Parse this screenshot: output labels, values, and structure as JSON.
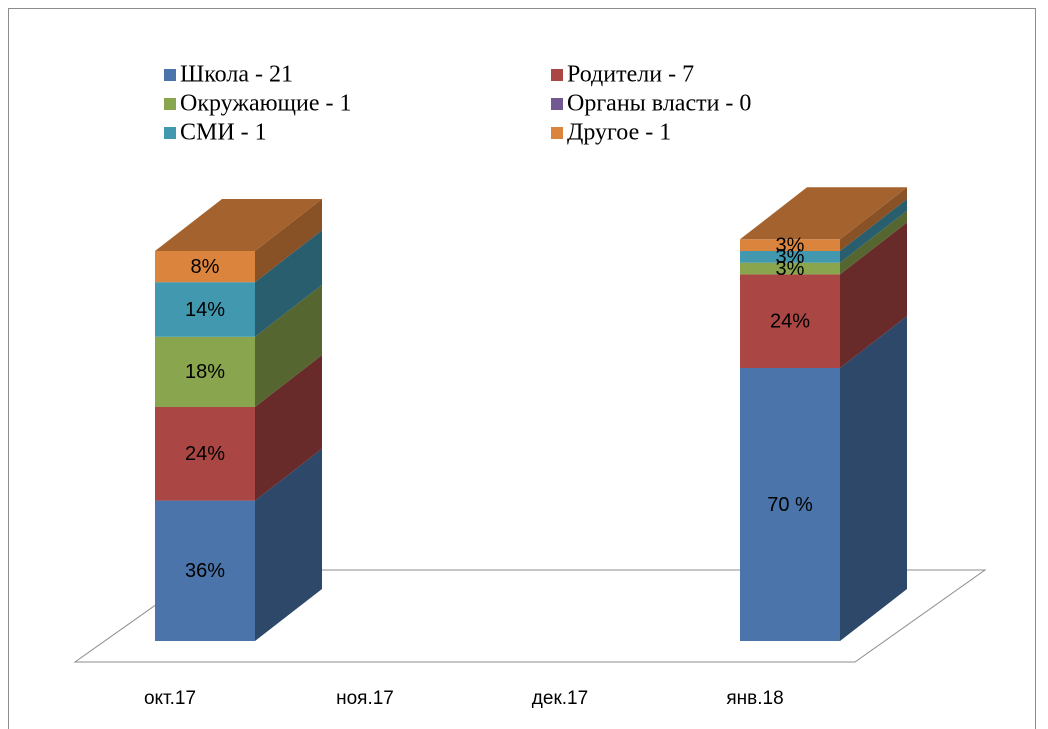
{
  "chart_data": {
    "type": "bar",
    "stacked": true,
    "categories": [
      "окт.17",
      "ноя.17",
      "дек.17",
      "янв.18"
    ],
    "series": [
      {
        "name": "Школа - 21",
        "color": "#4a74aa",
        "values": [
          36,
          null,
          null,
          70
        ],
        "value_labels": [
          "36%",
          null,
          null,
          "70 %"
        ]
      },
      {
        "name": "Родители - 7",
        "color": "#aa4643",
        "values": [
          24,
          null,
          null,
          24
        ],
        "value_labels": [
          "24%",
          null,
          null,
          "24%"
        ]
      },
      {
        "name": "Окружающие - 1",
        "color": "#89a54e",
        "values": [
          18,
          null,
          null,
          3
        ],
        "value_labels": [
          "18%",
          null,
          null,
          "3%"
        ]
      },
      {
        "name": "Органы власти - 0",
        "color": "#71588f",
        "values": [
          0,
          null,
          null,
          0
        ],
        "value_labels": [
          null,
          null,
          null,
          null
        ]
      },
      {
        "name": "СМИ - 1",
        "color": "#4198af",
        "values": [
          14,
          null,
          null,
          3
        ],
        "value_labels": [
          "14%",
          null,
          null,
          "3%"
        ]
      },
      {
        "name": "Другое - 1",
        "color": "#db843d",
        "values": [
          8,
          null,
          null,
          3
        ],
        "value_labels": [
          "8%",
          null,
          null,
          "3%"
        ]
      }
    ]
  }
}
